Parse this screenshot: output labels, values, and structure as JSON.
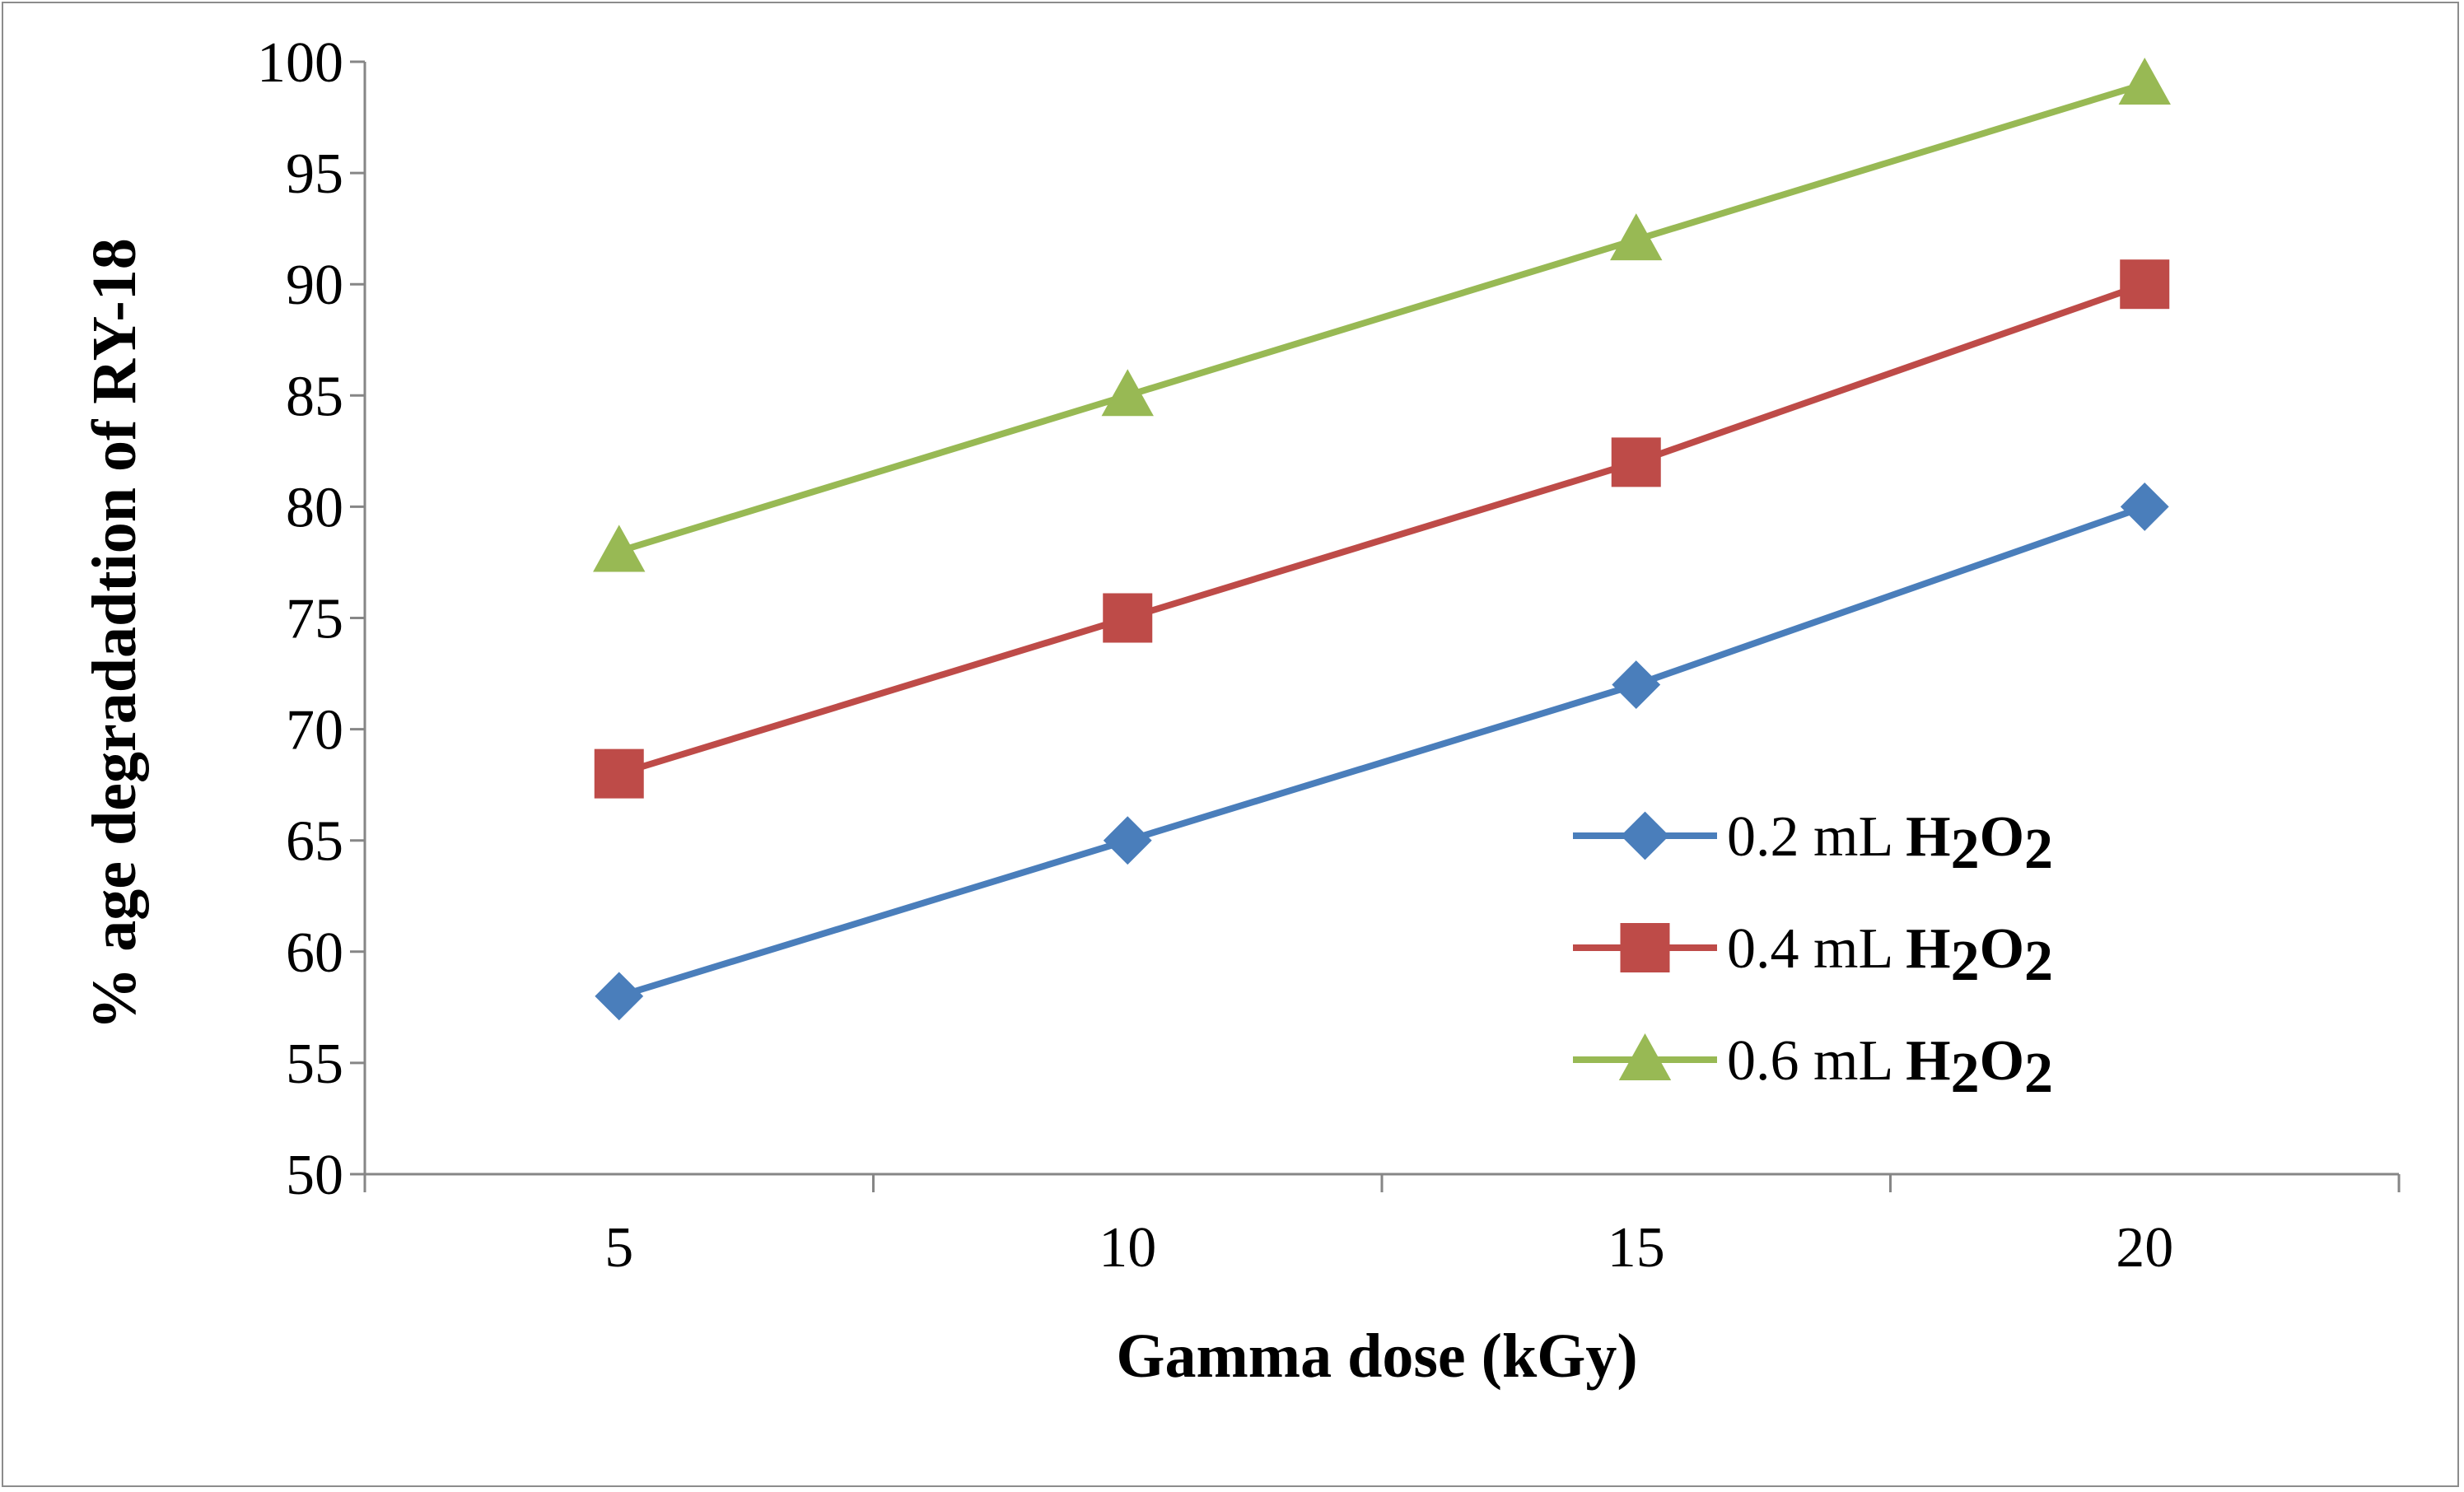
{
  "chart_data": {
    "type": "line",
    "title": "",
    "xlabel": "Gamma dose (kGy)",
    "ylabel": "% age degradadtion of RY-18",
    "categories": [
      "5",
      "10",
      "15",
      "20"
    ],
    "x": [
      5,
      10,
      15,
      20
    ],
    "ylim": [
      50,
      100
    ],
    "yticks": [
      50,
      55,
      60,
      65,
      70,
      75,
      80,
      85,
      90,
      95,
      100
    ],
    "grid": false,
    "legend_position": "right",
    "series": [
      {
        "name": "0.2 mL H2O2",
        "label_prefix": "0.2 mL",
        "label_chem": "H",
        "label_sub1": "2",
        "label_chem2": "O",
        "label_sub2": "2",
        "values": [
          58,
          65,
          72,
          80
        ],
        "color": "#4a7ebb",
        "marker": "diamond"
      },
      {
        "name": "0.4 mL H2O2",
        "label_prefix": "0.4 mL",
        "label_chem": "H",
        "label_sub1": "2",
        "label_chem2": "O",
        "label_sub2": "2",
        "values": [
          68,
          75,
          82,
          90
        ],
        "color": "#be4b48",
        "marker": "square"
      },
      {
        "name": "0.6 mL H2O2",
        "label_prefix": "0.6 mL",
        "label_chem": "H",
        "label_sub1": "2",
        "label_chem2": "O",
        "label_sub2": "2",
        "values": [
          78,
          85,
          92,
          99
        ],
        "color": "#98b954",
        "marker": "triangle"
      }
    ]
  }
}
